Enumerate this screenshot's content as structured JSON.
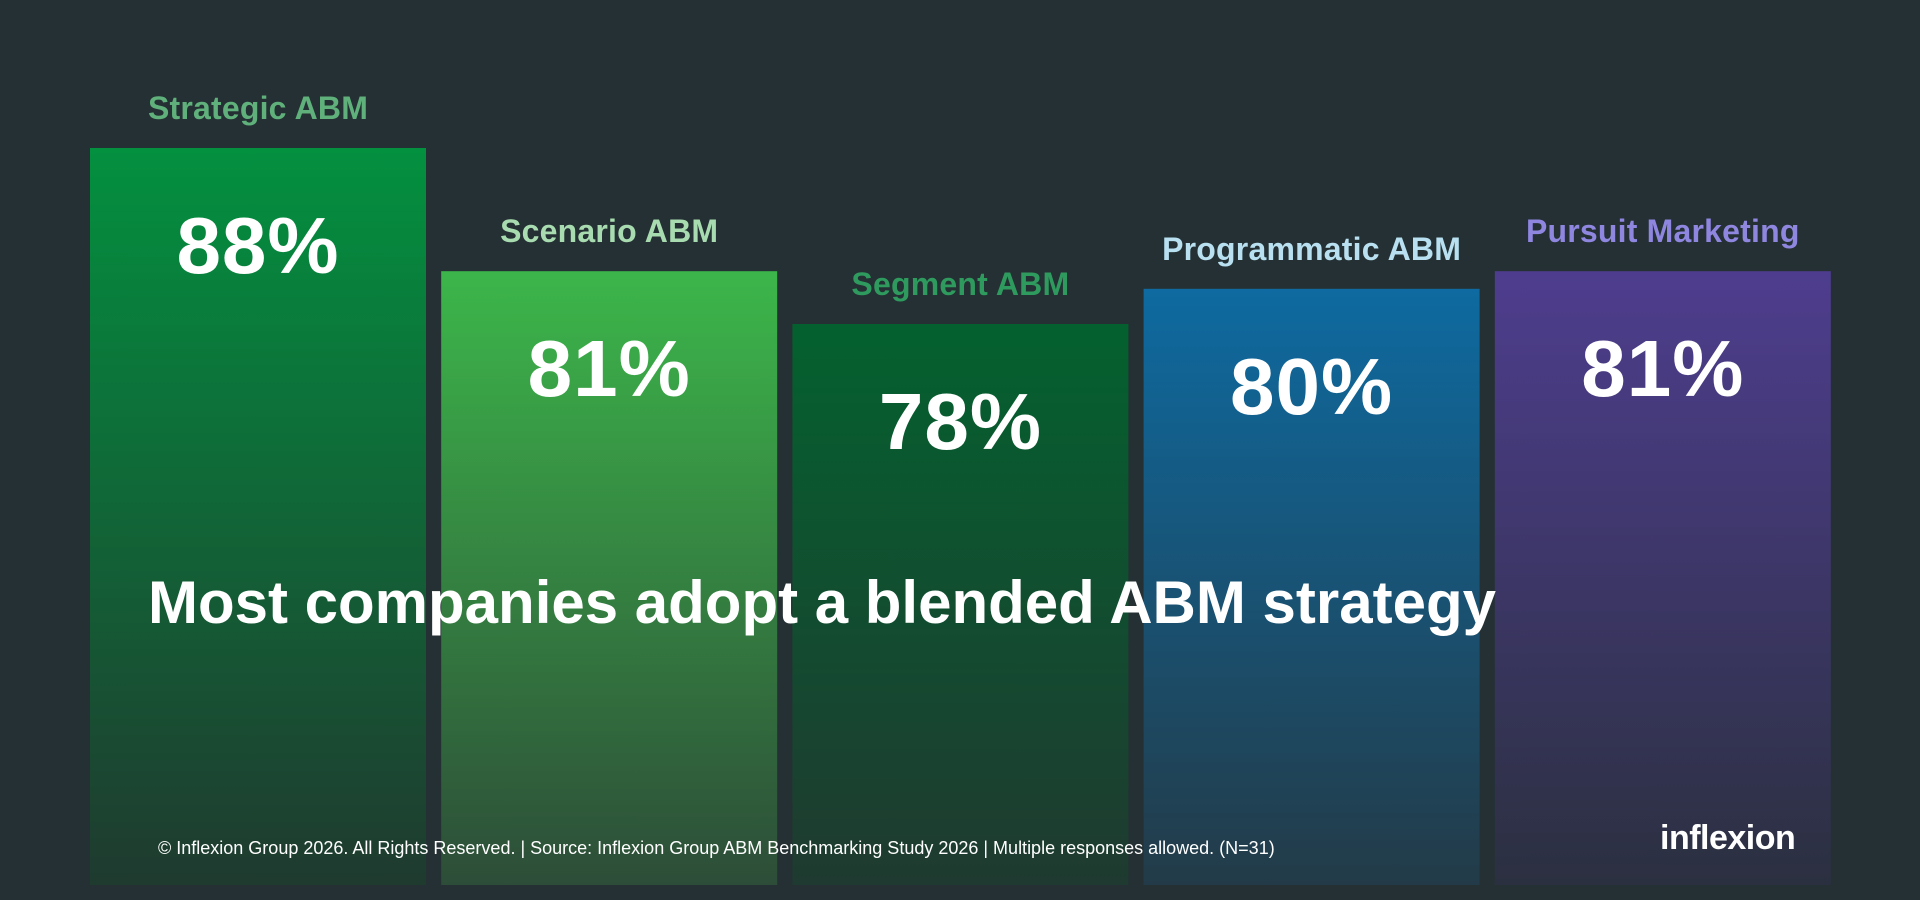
{
  "chart_data": {
    "type": "bar",
    "categories": [
      "Strategic ABM",
      "Scenario ABM",
      "Segment ABM",
      "Programmatic ABM",
      "Pursuit Marketing"
    ],
    "values": [
      88,
      81,
      78,
      80,
      81
    ],
    "value_labels": [
      "88%",
      "81%",
      "78%",
      "80%",
      "81%"
    ],
    "title": "Most companies adopt a blended ABM strategy",
    "xlabel": "",
    "ylabel": "",
    "ylim": [
      0,
      100
    ],
    "grid": false,
    "legend": "none",
    "colors": {
      "label_colors": [
        "#5fb07a",
        "#a8dcb0",
        "#2f9a5e",
        "#b8e0f0",
        "#8f86e0"
      ],
      "bar_top": [
        "#03903f",
        "#3cb64a",
        "#04612f",
        "#0e6aa0",
        "#4e3d8e"
      ],
      "bar_bottom": [
        "#1f3a2f",
        "#2d4d38",
        "#1f3a30",
        "#233b48",
        "#2b3040"
      ]
    }
  },
  "footer": {
    "text": "© Inflexion Group 2026. All Rights Reserved.  |  Source: Inflexion Group ABM Benchmarking Study 2026  |  Multiple responses allowed. (N=31)"
  },
  "brand": {
    "logo_text": "inflexion"
  },
  "background": "#243033"
}
